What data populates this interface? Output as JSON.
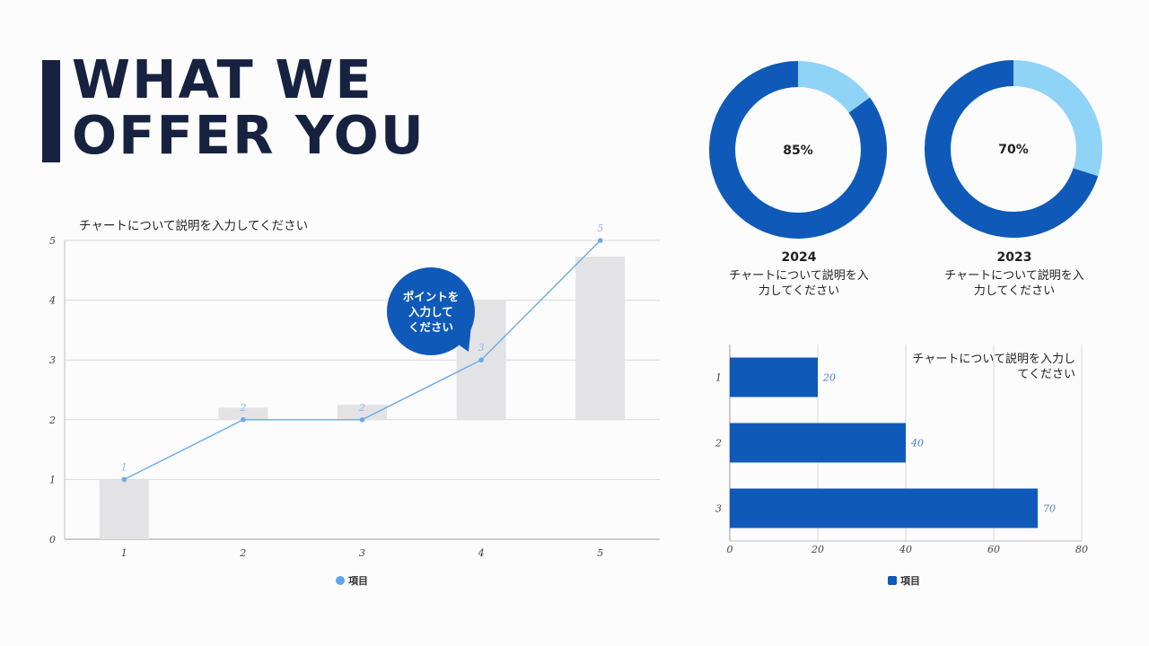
{
  "title": "WHAT WE\nOFFER YOU",
  "colors": {
    "navy": "#162240",
    "blue": "#0f5ab8",
    "light_blue": "#8fd3f6",
    "line": "#6aaae6",
    "bar_gray": "#e3e3e5",
    "label_blue": "#4d7fc4"
  },
  "callout": {
    "text": "ポイントを\n入力して\nください"
  },
  "donuts": [
    {
      "year": "2024",
      "value_label": "85%",
      "value": 85,
      "description": "チャートについて説明を入\n力してください"
    },
    {
      "year": "2023",
      "value_label": "70%",
      "value": 70,
      "description": "チャートについて説明を入\n力してください"
    }
  ],
  "chart_data": [
    {
      "type": "bar",
      "subtype": "combo-floating-bar-line",
      "title": "チャートについて説明を入力してください",
      "categories": [
        "1",
        "2",
        "3",
        "4",
        "5"
      ],
      "ylim": [
        0,
        5
      ],
      "yticks": [
        "0",
        "1",
        "2",
        "3",
        "4",
        "5"
      ],
      "grid": true,
      "legend_position": "bottom",
      "bars": [
        {
          "low": 0,
          "high": 1
        },
        {
          "low": 2,
          "high": 2.2
        },
        {
          "low": 2,
          "high": 2.25
        },
        {
          "low": 2,
          "high": 4
        },
        {
          "low": 2,
          "high": 4.73
        }
      ],
      "series": [
        {
          "name": "項目",
          "type": "line",
          "values": [
            1,
            2,
            2,
            3,
            5
          ],
          "labels": [
            "1",
            "2",
            "2",
            "3",
            "5"
          ]
        }
      ]
    },
    {
      "type": "bar",
      "orientation": "horizontal",
      "title": "チャートについて説明を入力してください",
      "categories": [
        "1",
        "2",
        "3"
      ],
      "xlim": [
        0,
        80
      ],
      "xticks": [
        "0",
        "20",
        "40",
        "60",
        "80"
      ],
      "grid": true,
      "legend_position": "bottom",
      "series": [
        {
          "name": "項目",
          "values": [
            20,
            40,
            70
          ],
          "labels": [
            "20",
            "40",
            "70"
          ]
        }
      ]
    }
  ]
}
